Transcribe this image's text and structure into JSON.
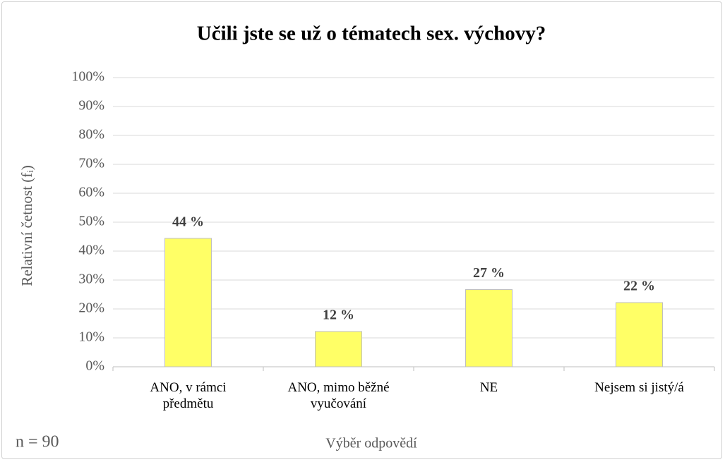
{
  "chart_data": {
    "type": "bar",
    "title": "Učili jste se už o tématech sex. výchovy?",
    "y_label": "Relativní četnost (fᵢ)",
    "x_label": "Výběr odpovědí",
    "note": "n = 90",
    "categories": [
      "ANO, v rámci předmětu",
      "ANO, mimo běžné vyučování",
      "NE",
      "Nejsem si jistý/á"
    ],
    "values": [
      44.4,
      12.2,
      26.7,
      22.2
    ],
    "value_labels": [
      "44 %",
      "12 %",
      "27 %",
      "22 %"
    ],
    "color": "#ffff66",
    "ylim": [
      0,
      100
    ],
    "yticks": [
      {
        "value": 0,
        "label": "0%"
      },
      {
        "value": 10,
        "label": "10%"
      },
      {
        "value": 20,
        "label": "20%"
      },
      {
        "value": 30,
        "label": "30%"
      },
      {
        "value": 40,
        "label": "40%"
      },
      {
        "value": 50,
        "label": "50%"
      },
      {
        "value": 60,
        "label": "60%"
      },
      {
        "value": 70,
        "label": "70%"
      },
      {
        "value": 80,
        "label": "80%"
      },
      {
        "value": 90,
        "label": "90%"
      },
      {
        "value": 100,
        "label": "100%"
      }
    ],
    "grid": true
  }
}
